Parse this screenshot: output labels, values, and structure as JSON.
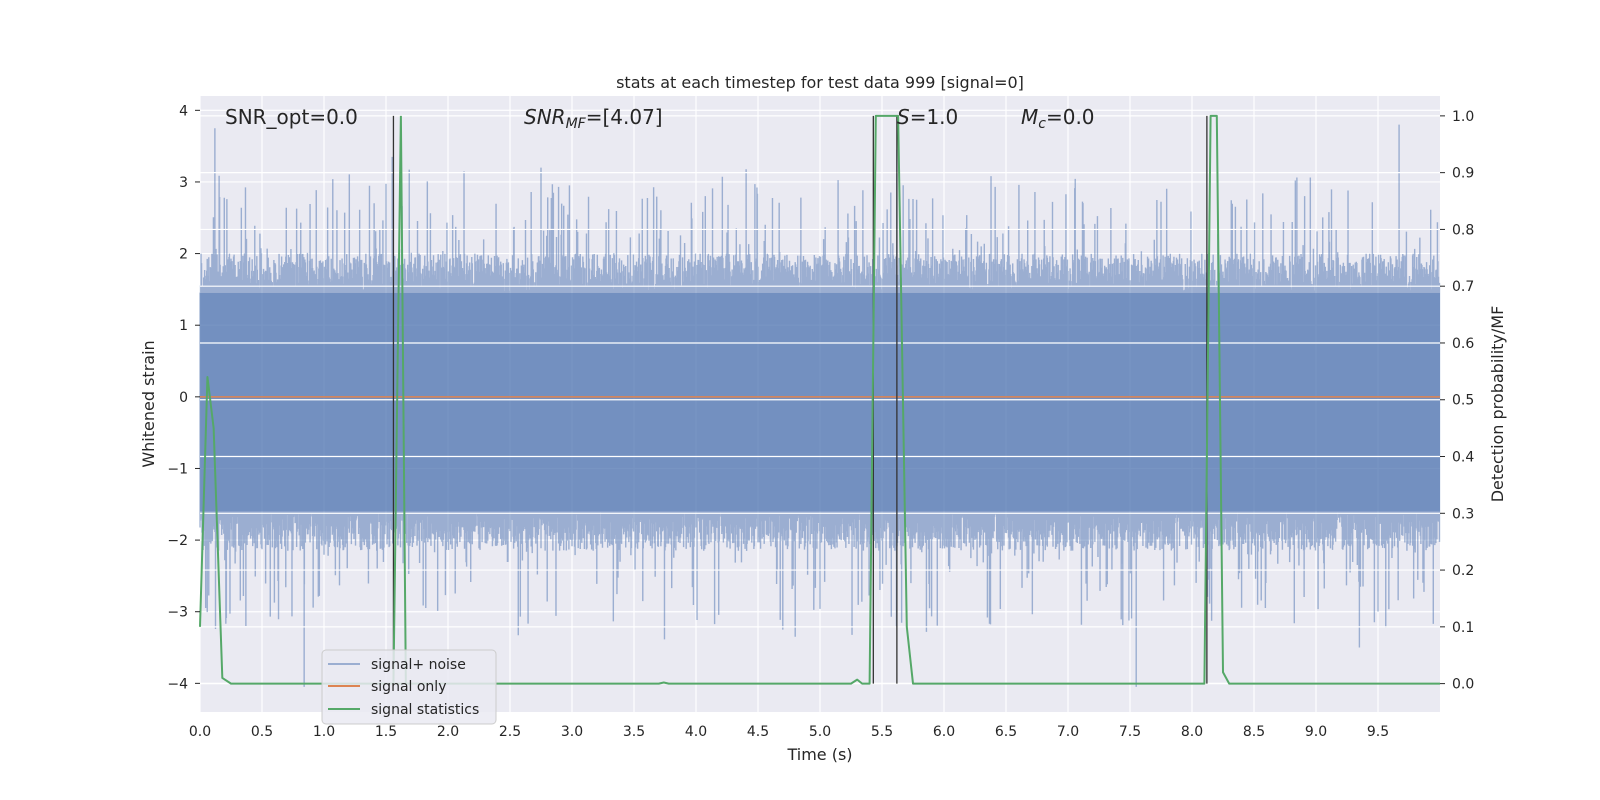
{
  "chart_data": {
    "type": "line",
    "title": "stats at each timestep for test data 999 [signal=0]",
    "xlabel": "Time (s)",
    "ylabel": "Whitened strain",
    "y2label": "Detection probability/MF",
    "xlim": [
      0,
      10
    ],
    "ylim": [
      -4.4,
      4.2
    ],
    "y2lim": [
      -0.05,
      1.035
    ],
    "x_ticks": [
      "0.0",
      "0.5",
      "1.0",
      "1.5",
      "2.0",
      "2.5",
      "3.0",
      "3.5",
      "4.0",
      "4.5",
      "5.0",
      "5.5",
      "6.0",
      "6.5",
      "7.0",
      "7.5",
      "8.0",
      "8.5",
      "9.0",
      "9.5"
    ],
    "y_ticks": [
      "4",
      "3",
      "2",
      "1",
      "0",
      "−1",
      "−2",
      "−3",
      "−4"
    ],
    "y2_ticks": [
      "1.0",
      "0.9",
      "0.8",
      "0.7",
      "0.6",
      "0.5",
      "0.4",
      "0.3",
      "0.2",
      "0.1",
      "0.0"
    ],
    "grid": true,
    "annotations": {
      "snr_opt": "SNR_opt=0.0",
      "snr_mf_base": "SNR",
      "snr_mf_sub": "MF",
      "snr_mf_value": "=[4.07]",
      "s_base": "S",
      "s_value": "=1.0",
      "mc_base": "M",
      "mc_sub": "c",
      "mc_value": "=0.0"
    },
    "legend": {
      "position": "lower left",
      "entries": [
        "signal+ noise",
        "signal only",
        "signal statistics"
      ]
    },
    "series": [
      {
        "name": "signal+ noise",
        "axis": "left",
        "color": "#4c72b0",
        "description_stats": {
          "core_low": -1.6,
          "core_high": 1.45,
          "spike_low": -4.05,
          "spike_high": 3.85
        },
        "notable_peaks": [
          {
            "x": 0.12,
            "y": 3.75
          },
          {
            "x": 0.37,
            "y": -3.2
          },
          {
            "x": 0.84,
            "y": -4.05
          },
          {
            "x": 1.55,
            "y": 3.35
          },
          {
            "x": 2.75,
            "y": 3.2
          },
          {
            "x": 4.7,
            "y": -3.25
          },
          {
            "x": 4.8,
            "y": -3.35
          },
          {
            "x": 5.62,
            "y": 3.45
          },
          {
            "x": 7.55,
            "y": -4.05
          },
          {
            "x": 9.35,
            "y": -3.5
          },
          {
            "x": 9.67,
            "y": 3.8
          }
        ]
      },
      {
        "name": "signal only",
        "axis": "left",
        "color": "#dd8452",
        "x": [
          0,
          10
        ],
        "y": [
          0,
          0
        ]
      },
      {
        "name": "signal statistics",
        "axis": "right",
        "color": "#55a868",
        "x": [
          0,
          0.06,
          0.11,
          0.18,
          0.25,
          3.7,
          3.74,
          3.78,
          5.25,
          5.3,
          5.34,
          5.4,
          5.45,
          5.5,
          5.6,
          5.63,
          5.7,
          5.75,
          8.1,
          8.15,
          8.2,
          8.25,
          8.3,
          10
        ],
        "y": [
          0.1,
          0.54,
          0.45,
          0.01,
          0.0,
          0.0,
          0.002,
          0.0,
          0.0,
          0.007,
          0.0,
          0.0,
          1.0,
          1.0,
          1.0,
          1.0,
          0.1,
          0.0,
          0.0,
          1.0,
          1.0,
          0.02,
          0.0,
          0.0
        ],
        "extra_spike": {
          "x": [
            1.56,
            1.62,
            1.66
          ],
          "y": [
            0.0,
            1.0,
            0.0
          ]
        }
      }
    ],
    "vertical_lines": [
      1.56,
      5.43,
      5.62,
      8.12
    ],
    "vertical_line_color": "#333333"
  }
}
